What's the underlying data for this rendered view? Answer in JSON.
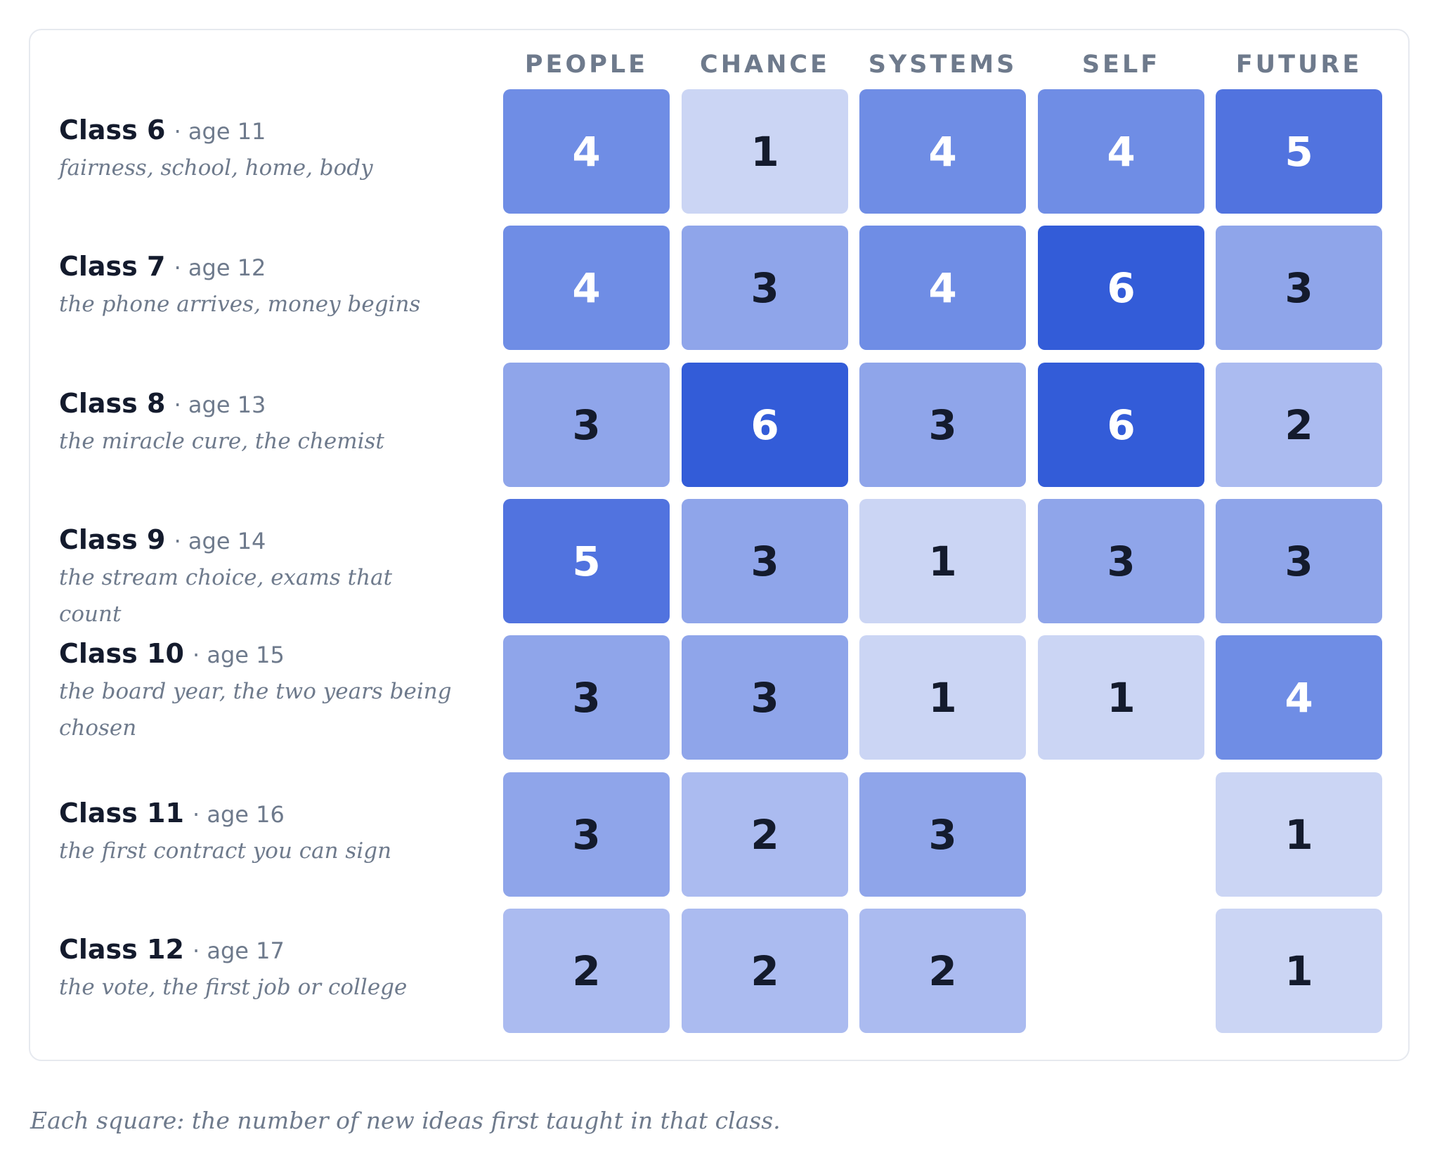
{
  "chart_data": {
    "type": "heatmap",
    "columns": [
      "PEOPLE",
      "CHANCE",
      "SYSTEMS",
      "SELF",
      "FUTURE"
    ],
    "rows": [
      {
        "class": "Class 6",
        "age": "· age 11",
        "description": "fairness, school, home, body",
        "values": [
          4,
          1,
          4,
          4,
          5
        ]
      },
      {
        "class": "Class 7",
        "age": "· age 12",
        "description": "the phone arrives, money begins",
        "values": [
          4,
          3,
          4,
          6,
          3
        ]
      },
      {
        "class": "Class 8",
        "age": "· age 13",
        "description": "the miracle cure, the chemist",
        "values": [
          3,
          6,
          3,
          6,
          2
        ]
      },
      {
        "class": "Class 9",
        "age": "· age 14",
        "description": "the stream choice, exams that count",
        "values": [
          5,
          3,
          1,
          3,
          3
        ]
      },
      {
        "class": "Class 10",
        "age": "· age 15",
        "description": "the board year, the two years being chosen",
        "values": [
          3,
          3,
          1,
          1,
          4
        ]
      },
      {
        "class": "Class 11",
        "age": "· age 16",
        "description": "the first contract you can sign",
        "values": [
          3,
          2,
          3,
          null,
          1
        ]
      },
      {
        "class": "Class 12",
        "age": "· age 17",
        "description": "the vote, the first job or college",
        "values": [
          2,
          2,
          2,
          null,
          1
        ]
      }
    ],
    "color_scale": {
      "1": "#cbd5f4",
      "2": "#abbbf0",
      "3": "#8fa5ea",
      "4": "#6f8de5",
      "5": "#5173df",
      "6": "#335cd8"
    },
    "text_color_dark": "#141b2d",
    "text_color_light": "#ffffff",
    "footnote": "Each square: the number of new ideas first taught in that class."
  }
}
